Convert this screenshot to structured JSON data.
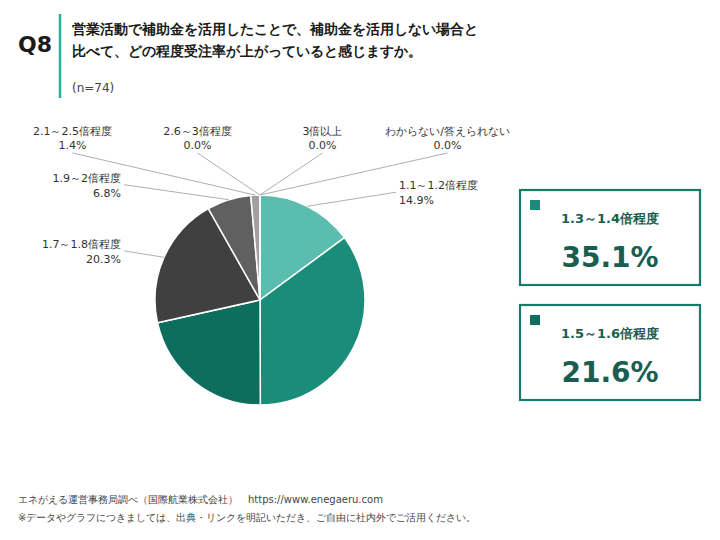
{
  "chart_data": {
    "type": "pie",
    "title": "営業活動で補助金を活用したことで、補助金を活用しない場合と\n比べて、どの程度受注率が上がっていると感じますか。",
    "subtitle": "(n=74)",
    "annotations": [
      "Q8",
      "エネがえる運営事務局調べ（国際航業株式会社）　https://www.enegaeru.com",
      "※データやグラフにつきましては、出典・リンクを明記いただき、ご自由に社内外でご活用ください。"
    ],
    "categories": [
      "1.1～1.2倍程度",
      "1.3～1.4倍程度",
      "1.5～1.6倍程度",
      "1.7～1.8倍程度",
      "1.9～2倍程度",
      "2.1～2.5倍程度",
      "2.6～3倍程度",
      "3倍以上",
      "わからない/答えられない"
    ],
    "values": [
      14.9,
      35.1,
      21.6,
      20.3,
      6.8,
      1.4,
      0.001,
      0.001,
      0.001
    ],
    "value_labels": [
      "14.9%",
      "35.1%",
      "21.6%",
      "20.3%",
      "6.8%",
      "1.4%",
      "0.0%",
      "0.0%",
      "0.0%"
    ],
    "colors": [
      "#5bbdad",
      "#1a8c7a",
      "#0d6e5e",
      "#404040",
      "#606060",
      "#a0a0a0",
      "#787878",
      "#b8b8b8",
      "#c8c8c8"
    ],
    "data_labels": true
  }
}
